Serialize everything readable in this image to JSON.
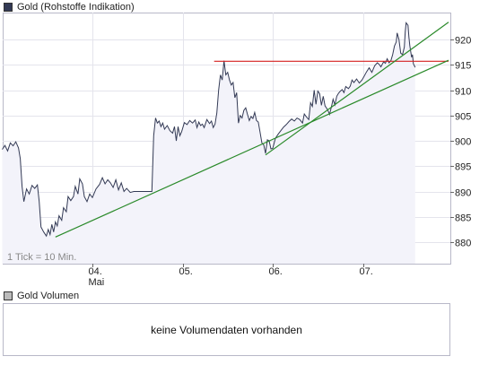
{
  "price_legend": {
    "label": "Gold (Rohstoffe Indikation)",
    "color": "#333a55"
  },
  "volume_legend": {
    "label": "Gold Volumen",
    "color": "#bbbbbb"
  },
  "volume_message": "keine Volumendaten vorhanden",
  "chart_data": {
    "type": "line",
    "title": "",
    "ylim": [
      875,
      925
    ],
    "y_ticks": [
      880,
      885,
      890,
      895,
      900,
      905,
      910,
      915,
      920
    ],
    "y_axis_side": "right",
    "grid": true,
    "tick_note": "1 Tick = 10 Min.",
    "x_tick_labels": [
      {
        "label": "04.",
        "sub": "Mai",
        "t": 3
      },
      {
        "label": "05.",
        "sub": "",
        "t": 4
      },
      {
        "label": "06.",
        "sub": "",
        "t": 5
      },
      {
        "label": "07.",
        "sub": "",
        "t": 6
      }
    ],
    "xlim": [
      2.0,
      6.95
    ],
    "series": [
      {
        "name": "",
        "color": "#333a55",
        "fill": "#f3f3fa",
        "points": [
          [
            2.0,
            898.3
          ],
          [
            2.03,
            899.1
          ],
          [
            2.06,
            898.0
          ],
          [
            2.09,
            899.6
          ],
          [
            2.12,
            899.0
          ],
          [
            2.15,
            899.8
          ],
          [
            2.18,
            898.6
          ],
          [
            2.2,
            896.5
          ],
          [
            2.22,
            891.0
          ],
          [
            2.24,
            888.0
          ],
          [
            2.27,
            890.5
          ],
          [
            2.3,
            889.5
          ],
          [
            2.33,
            891.2
          ],
          [
            2.36,
            890.6
          ],
          [
            2.39,
            891.3
          ],
          [
            2.41,
            888.0
          ],
          [
            2.43,
            883.0
          ],
          [
            2.46,
            882.0
          ],
          [
            2.49,
            881.2
          ],
          [
            2.51,
            882.5
          ],
          [
            2.53,
            881.5
          ],
          [
            2.55,
            883.5
          ],
          [
            2.57,
            882.0
          ],
          [
            2.59,
            884.0
          ],
          [
            2.61,
            883.2
          ],
          [
            2.63,
            885.2
          ],
          [
            2.66,
            884.3
          ],
          [
            2.68,
            886.8
          ],
          [
            2.71,
            886.0
          ],
          [
            2.73,
            889.0
          ],
          [
            2.76,
            888.2
          ],
          [
            2.79,
            889.0
          ],
          [
            2.81,
            891.0
          ],
          [
            2.84,
            889.5
          ],
          [
            2.86,
            892.5
          ],
          [
            2.89,
            891.5
          ],
          [
            2.91,
            889.0
          ],
          [
            2.94,
            888.0
          ],
          [
            2.97,
            889.5
          ],
          [
            3.0,
            888.8
          ],
          [
            3.04,
            890.5
          ],
          [
            3.08,
            891.4
          ],
          [
            3.11,
            892.7
          ],
          [
            3.14,
            891.5
          ],
          [
            3.17,
            892.3
          ],
          [
            3.2,
            891.7
          ],
          [
            3.23,
            890.8
          ],
          [
            3.26,
            892.3
          ],
          [
            3.29,
            890.3
          ],
          [
            3.32,
            891.7
          ],
          [
            3.35,
            890.0
          ],
          [
            3.38,
            890.6
          ],
          [
            3.42,
            889.8
          ],
          [
            3.46,
            890.0
          ],
          [
            3.5,
            890.0
          ],
          [
            3.54,
            890.0
          ],
          [
            3.59,
            890.0
          ],
          [
            3.62,
            890.0
          ],
          [
            3.66,
            890.0
          ],
          [
            3.68,
            901.0
          ],
          [
            3.7,
            904.5
          ],
          [
            3.72,
            903.5
          ],
          [
            3.74,
            903.9
          ],
          [
            3.76,
            902.8
          ],
          [
            3.78,
            903.5
          ],
          [
            3.8,
            902.3
          ],
          [
            3.83,
            903.0
          ],
          [
            3.86,
            902.0
          ],
          [
            3.89,
            901.5
          ],
          [
            3.91,
            902.8
          ],
          [
            3.93,
            900.0
          ],
          [
            3.95,
            902.8
          ],
          [
            3.97,
            901.0
          ],
          [
            3.99,
            901.8
          ],
          [
            4.02,
            903.6
          ],
          [
            4.05,
            903.2
          ],
          [
            4.08,
            904.0
          ],
          [
            4.11,
            903.5
          ],
          [
            4.14,
            904.1
          ],
          [
            4.16,
            902.6
          ],
          [
            4.18,
            903.7
          ],
          [
            4.2,
            903.0
          ],
          [
            4.22,
            903.3
          ],
          [
            4.24,
            902.6
          ],
          [
            4.27,
            904.2
          ],
          [
            4.3,
            903.4
          ],
          [
            4.32,
            903.9
          ],
          [
            4.34,
            902.6
          ],
          [
            4.36,
            903.3
          ],
          [
            4.38,
            905.5
          ],
          [
            4.4,
            910.0
          ],
          [
            4.42,
            913.0
          ],
          [
            4.44,
            912.0
          ],
          [
            4.46,
            915.8
          ],
          [
            4.48,
            913.0
          ],
          [
            4.5,
            913.5
          ],
          [
            4.52,
            912.0
          ],
          [
            4.54,
            911.0
          ],
          [
            4.56,
            911.5
          ],
          [
            4.58,
            908.5
          ],
          [
            4.6,
            909.5
          ],
          [
            4.62,
            903.5
          ],
          [
            4.64,
            905.0
          ],
          [
            4.66,
            904.5
          ],
          [
            4.68,
            906.0
          ],
          [
            4.7,
            906.5
          ],
          [
            4.72,
            905.2
          ],
          [
            4.74,
            904.0
          ],
          [
            4.76,
            904.8
          ],
          [
            4.78,
            904.4
          ],
          [
            4.8,
            905.6
          ],
          [
            4.82,
            904.0
          ],
          [
            4.84,
            903.7
          ],
          [
            4.86,
            901.7
          ],
          [
            4.88,
            899.6
          ],
          [
            4.9,
            899.2
          ],
          [
            4.92,
            897.5
          ],
          [
            4.94,
            900.2
          ],
          [
            4.96,
            900.0
          ],
          [
            4.98,
            898.4
          ],
          [
            5.0,
            898.5
          ],
          [
            5.03,
            900.5
          ],
          [
            5.06,
            901.3
          ],
          [
            5.09,
            902.0
          ],
          [
            5.12,
            902.7
          ],
          [
            5.15,
            903.2
          ],
          [
            5.18,
            903.8
          ],
          [
            5.21,
            904.3
          ],
          [
            5.24,
            903.9
          ],
          [
            5.27,
            904.5
          ],
          [
            5.3,
            904.2
          ],
          [
            5.33,
            903.5
          ],
          [
            5.35,
            905.3
          ],
          [
            5.37,
            904.8
          ],
          [
            5.4,
            904.2
          ],
          [
            5.42,
            907.5
          ],
          [
            5.44,
            906.8
          ],
          [
            5.46,
            910.0
          ],
          [
            5.48,
            907.2
          ],
          [
            5.5,
            909.8
          ],
          [
            5.52,
            909.3
          ],
          [
            5.54,
            907.0
          ],
          [
            5.56,
            908.8
          ],
          [
            5.58,
            906.9
          ],
          [
            5.61,
            906.1
          ],
          [
            5.63,
            905.2
          ],
          [
            5.65,
            906.6
          ],
          [
            5.67,
            908.2
          ],
          [
            5.69,
            907.1
          ],
          [
            5.71,
            908.8
          ],
          [
            5.73,
            909.4
          ],
          [
            5.75,
            909.8
          ],
          [
            5.77,
            910.1
          ],
          [
            5.79,
            909.5
          ],
          [
            5.81,
            910.7
          ],
          [
            5.84,
            910.3
          ],
          [
            5.86,
            910.8
          ],
          [
            5.88,
            912.0
          ],
          [
            5.9,
            911.5
          ],
          [
            5.93,
            912.2
          ],
          [
            5.96,
            911.4
          ],
          [
            5.99,
            912.0
          ],
          [
            6.01,
            912.6
          ],
          [
            6.04,
            913.6
          ],
          [
            6.07,
            914.4
          ],
          [
            6.1,
            913.5
          ],
          [
            6.13,
            914.8
          ],
          [
            6.16,
            915.4
          ],
          [
            6.18,
            915.1
          ],
          [
            6.2,
            914.6
          ],
          [
            6.23,
            915.6
          ],
          [
            6.25,
            915.3
          ],
          [
            6.27,
            916.2
          ],
          [
            6.29,
            915.4
          ],
          [
            6.31,
            915.8
          ],
          [
            6.33,
            917.0
          ],
          [
            6.35,
            918.7
          ],
          [
            6.37,
            919.5
          ],
          [
            6.38,
            921.3
          ],
          [
            6.4,
            920.0
          ],
          [
            6.42,
            917.3
          ],
          [
            6.44,
            917.0
          ],
          [
            6.46,
            918.5
          ],
          [
            6.47,
            921.5
          ],
          [
            6.48,
            923.3
          ],
          [
            6.5,
            922.8
          ],
          [
            6.51,
            920.5
          ],
          [
            6.52,
            918.8
          ],
          [
            6.54,
            916.5
          ],
          [
            6.55,
            917.0
          ],
          [
            6.56,
            915.2
          ],
          [
            6.58,
            914.5
          ]
        ]
      }
    ],
    "annotations": [
      {
        "type": "line",
        "color": "#d42020",
        "from": [
          4.35,
          915.7
        ],
        "to": [
          6.95,
          915.7
        ]
      },
      {
        "type": "line",
        "color": "#2a8a2a",
        "from": [
          2.59,
          881.0
        ],
        "to": [
          6.95,
          915.9
        ]
      },
      {
        "type": "line",
        "color": "#2a8a2a",
        "from": [
          4.92,
          897.2
        ],
        "to": [
          6.95,
          923.4
        ]
      }
    ]
  }
}
